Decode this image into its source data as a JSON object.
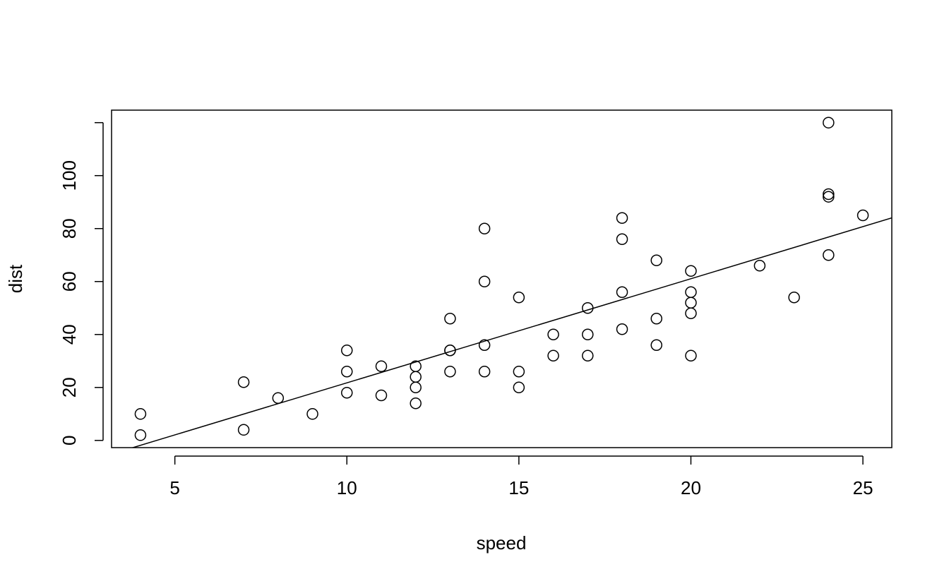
{
  "chart_data": {
    "type": "scatter",
    "x_label": "speed",
    "y_label": "dist",
    "x": [
      4,
      4,
      7,
      7,
      8,
      9,
      10,
      10,
      10,
      11,
      11,
      12,
      12,
      12,
      12,
      13,
      13,
      13,
      13,
      14,
      14,
      14,
      14,
      15,
      15,
      15,
      16,
      16,
      17,
      17,
      17,
      18,
      18,
      18,
      18,
      19,
      19,
      19,
      20,
      20,
      20,
      20,
      20,
      22,
      23,
      24,
      24,
      24,
      24,
      25
    ],
    "values": [
      2,
      10,
      4,
      22,
      16,
      10,
      18,
      26,
      34,
      17,
      28,
      14,
      20,
      24,
      28,
      26,
      34,
      34,
      46,
      26,
      36,
      60,
      80,
      20,
      26,
      54,
      32,
      40,
      32,
      40,
      50,
      42,
      56,
      76,
      84,
      36,
      46,
      68,
      32,
      48,
      52,
      56,
      64,
      66,
      54,
      70,
      92,
      93,
      120,
      85
    ],
    "color": "#000000",
    "fit": {
      "intercept": -17.579,
      "slope": 3.932
    },
    "xlim": [
      3.16,
      25.84
    ],
    "ylim": [
      -2.72,
      124.72
    ],
    "xticks": [
      5,
      10,
      15,
      20,
      25
    ],
    "yticks": [
      0,
      20,
      40,
      60,
      80,
      100,
      {
        "value": 120,
        "label": null
      }
    ]
  }
}
